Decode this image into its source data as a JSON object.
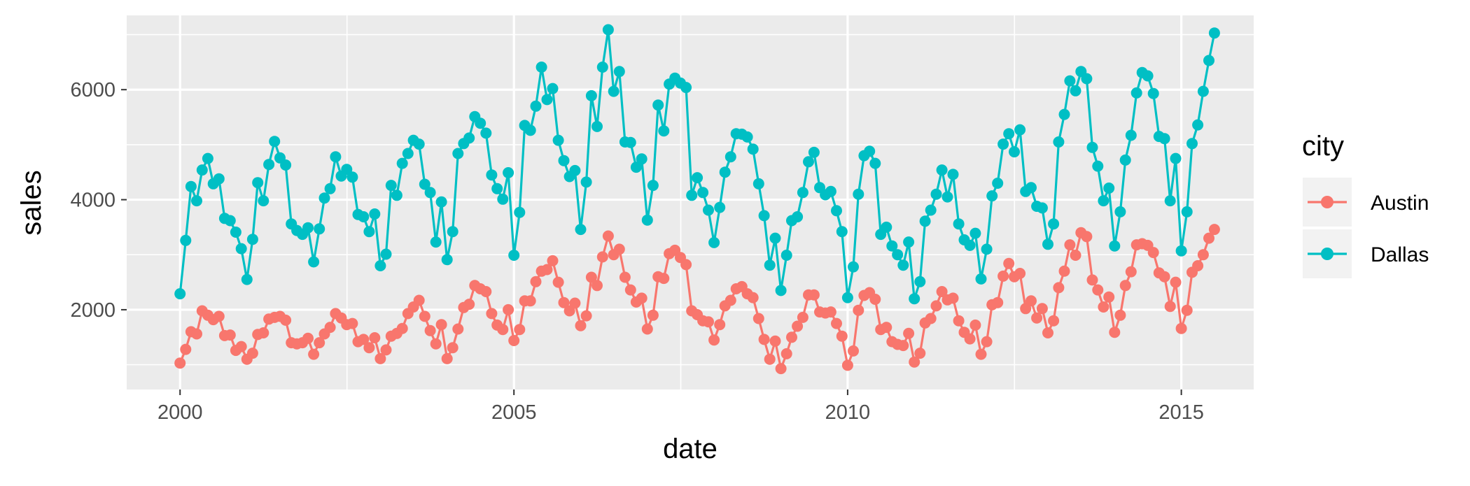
{
  "chart_data": {
    "type": "line",
    "xlabel": "date",
    "ylabel": "sales",
    "x_ticks": [
      "2000",
      "2005",
      "2010",
      "2015"
    ],
    "y_ticks": [
      "2000",
      "4000",
      "6000"
    ],
    "xlim": [
      "1999-03-15",
      "2016-02-01"
    ],
    "ylim": [
      550,
      7350
    ],
    "grid": true,
    "markers": true,
    "legend": {
      "title": "city",
      "placement": "right"
    },
    "start_date": "2000-01-01",
    "frequency": "monthly",
    "series": [
      {
        "name": "Austin",
        "color": "#F8766D",
        "values": [
          1030,
          1280,
          1600,
          1560,
          1980,
          1900,
          1820,
          1880,
          1530,
          1540,
          1260,
          1330,
          1100,
          1210,
          1550,
          1580,
          1830,
          1860,
          1880,
          1810,
          1400,
          1380,
          1400,
          1480,
          1190,
          1400,
          1560,
          1680,
          1930,
          1850,
          1730,
          1750,
          1420,
          1460,
          1310,
          1490,
          1110,
          1270,
          1520,
          1570,
          1660,
          1930,
          2050,
          2170,
          1880,
          1620,
          1380,
          1730,
          1110,
          1310,
          1650,
          2040,
          2100,
          2440,
          2380,
          2330,
          1930,
          1720,
          1640,
          2000,
          1440,
          1640,
          2160,
          2160,
          2510,
          2700,
          2730,
          2890,
          2500,
          2130,
          1980,
          2120,
          1710,
          1890,
          2590,
          2440,
          2960,
          3340,
          3000,
          3100,
          2590,
          2360,
          2140,
          2210,
          1650,
          1900,
          2600,
          2570,
          3020,
          3080,
          2950,
          2820,
          1980,
          1910,
          1800,
          1780,
          1450,
          1730,
          2070,
          2170,
          2380,
          2420,
          2290,
          2220,
          1840,
          1460,
          1100,
          1430,
          930,
          1200,
          1500,
          1700,
          1860,
          2270,
          2270,
          1960,
          1940,
          1960,
          1750,
          1520,
          990,
          1250,
          1990,
          2260,
          2310,
          2190,
          1640,
          1680,
          1420,
          1370,
          1350,
          1570,
          1050,
          1210,
          1760,
          1840,
          2070,
          2330,
          2180,
          2210,
          1800,
          1590,
          1470,
          1720,
          1190,
          1420,
          2090,
          2130,
          2610,
          2840,
          2600,
          2660,
          2020,
          2160,
          1850,
          2020,
          1580,
          1800,
          2400,
          2700,
          3180,
          2990,
          3400,
          3330,
          2540,
          2360,
          2050,
          2230,
          1590,
          1900,
          2440,
          2690,
          3180,
          3200,
          3170,
          3040,
          2670,
          2600,
          2060,
          2500,
          1660,
          1990,
          2680,
          2800,
          3000,
          3300,
          3460
        ]
      },
      {
        "name": "Dallas",
        "color": "#00BFC4",
        "values": [
          2290,
          3260,
          4240,
          3980,
          4540,
          4750,
          4290,
          4380,
          3660,
          3620,
          3410,
          3110,
          2550,
          3280,
          4310,
          3980,
          4640,
          5060,
          4760,
          4630,
          3560,
          3440,
          3370,
          3490,
          2870,
          3470,
          4030,
          4200,
          4780,
          4430,
          4550,
          4410,
          3730,
          3690,
          3420,
          3740,
          2800,
          3010,
          4260,
          4080,
          4660,
          4840,
          5080,
          5010,
          4280,
          4130,
          3230,
          3960,
          2910,
          3420,
          4840,
          5020,
          5120,
          5510,
          5390,
          5210,
          4450,
          4200,
          4010,
          4490,
          2990,
          3770,
          5350,
          5260,
          5700,
          6410,
          5820,
          6020,
          5080,
          4710,
          4420,
          4530,
          3460,
          4320,
          5890,
          5330,
          6410,
          7090,
          5970,
          6330,
          5050,
          5040,
          4590,
          4740,
          3630,
          4260,
          5720,
          5250,
          6100,
          6210,
          6120,
          6040,
          4080,
          4400,
          4130,
          3810,
          3220,
          3860,
          4500,
          4780,
          5200,
          5190,
          5140,
          4920,
          4290,
          3710,
          2810,
          3300,
          2350,
          2990,
          3620,
          3690,
          4130,
          4690,
          4860,
          4220,
          4090,
          4150,
          3800,
          3420,
          2220,
          2780,
          4100,
          4800,
          4880,
          4660,
          3370,
          3500,
          3160,
          3000,
          2810,
          3230,
          2200,
          2510,
          3610,
          3810,
          4100,
          4540,
          4050,
          4460,
          3560,
          3270,
          3170,
          3390,
          2560,
          3100,
          4070,
          4300,
          5010,
          5200,
          4870,
          5270,
          4150,
          4220,
          3880,
          3850,
          3190,
          3560,
          5050,
          5550,
          6160,
          5980,
          6330,
          6200,
          4950,
          4610,
          3980,
          4210,
          3160,
          3780,
          4720,
          5170,
          5940,
          6310,
          6250,
          5930,
          5150,
          5110,
          3980,
          4750,
          3070,
          3780,
          5020,
          5360,
          5970,
          6530,
          7030
        ]
      }
    ]
  }
}
